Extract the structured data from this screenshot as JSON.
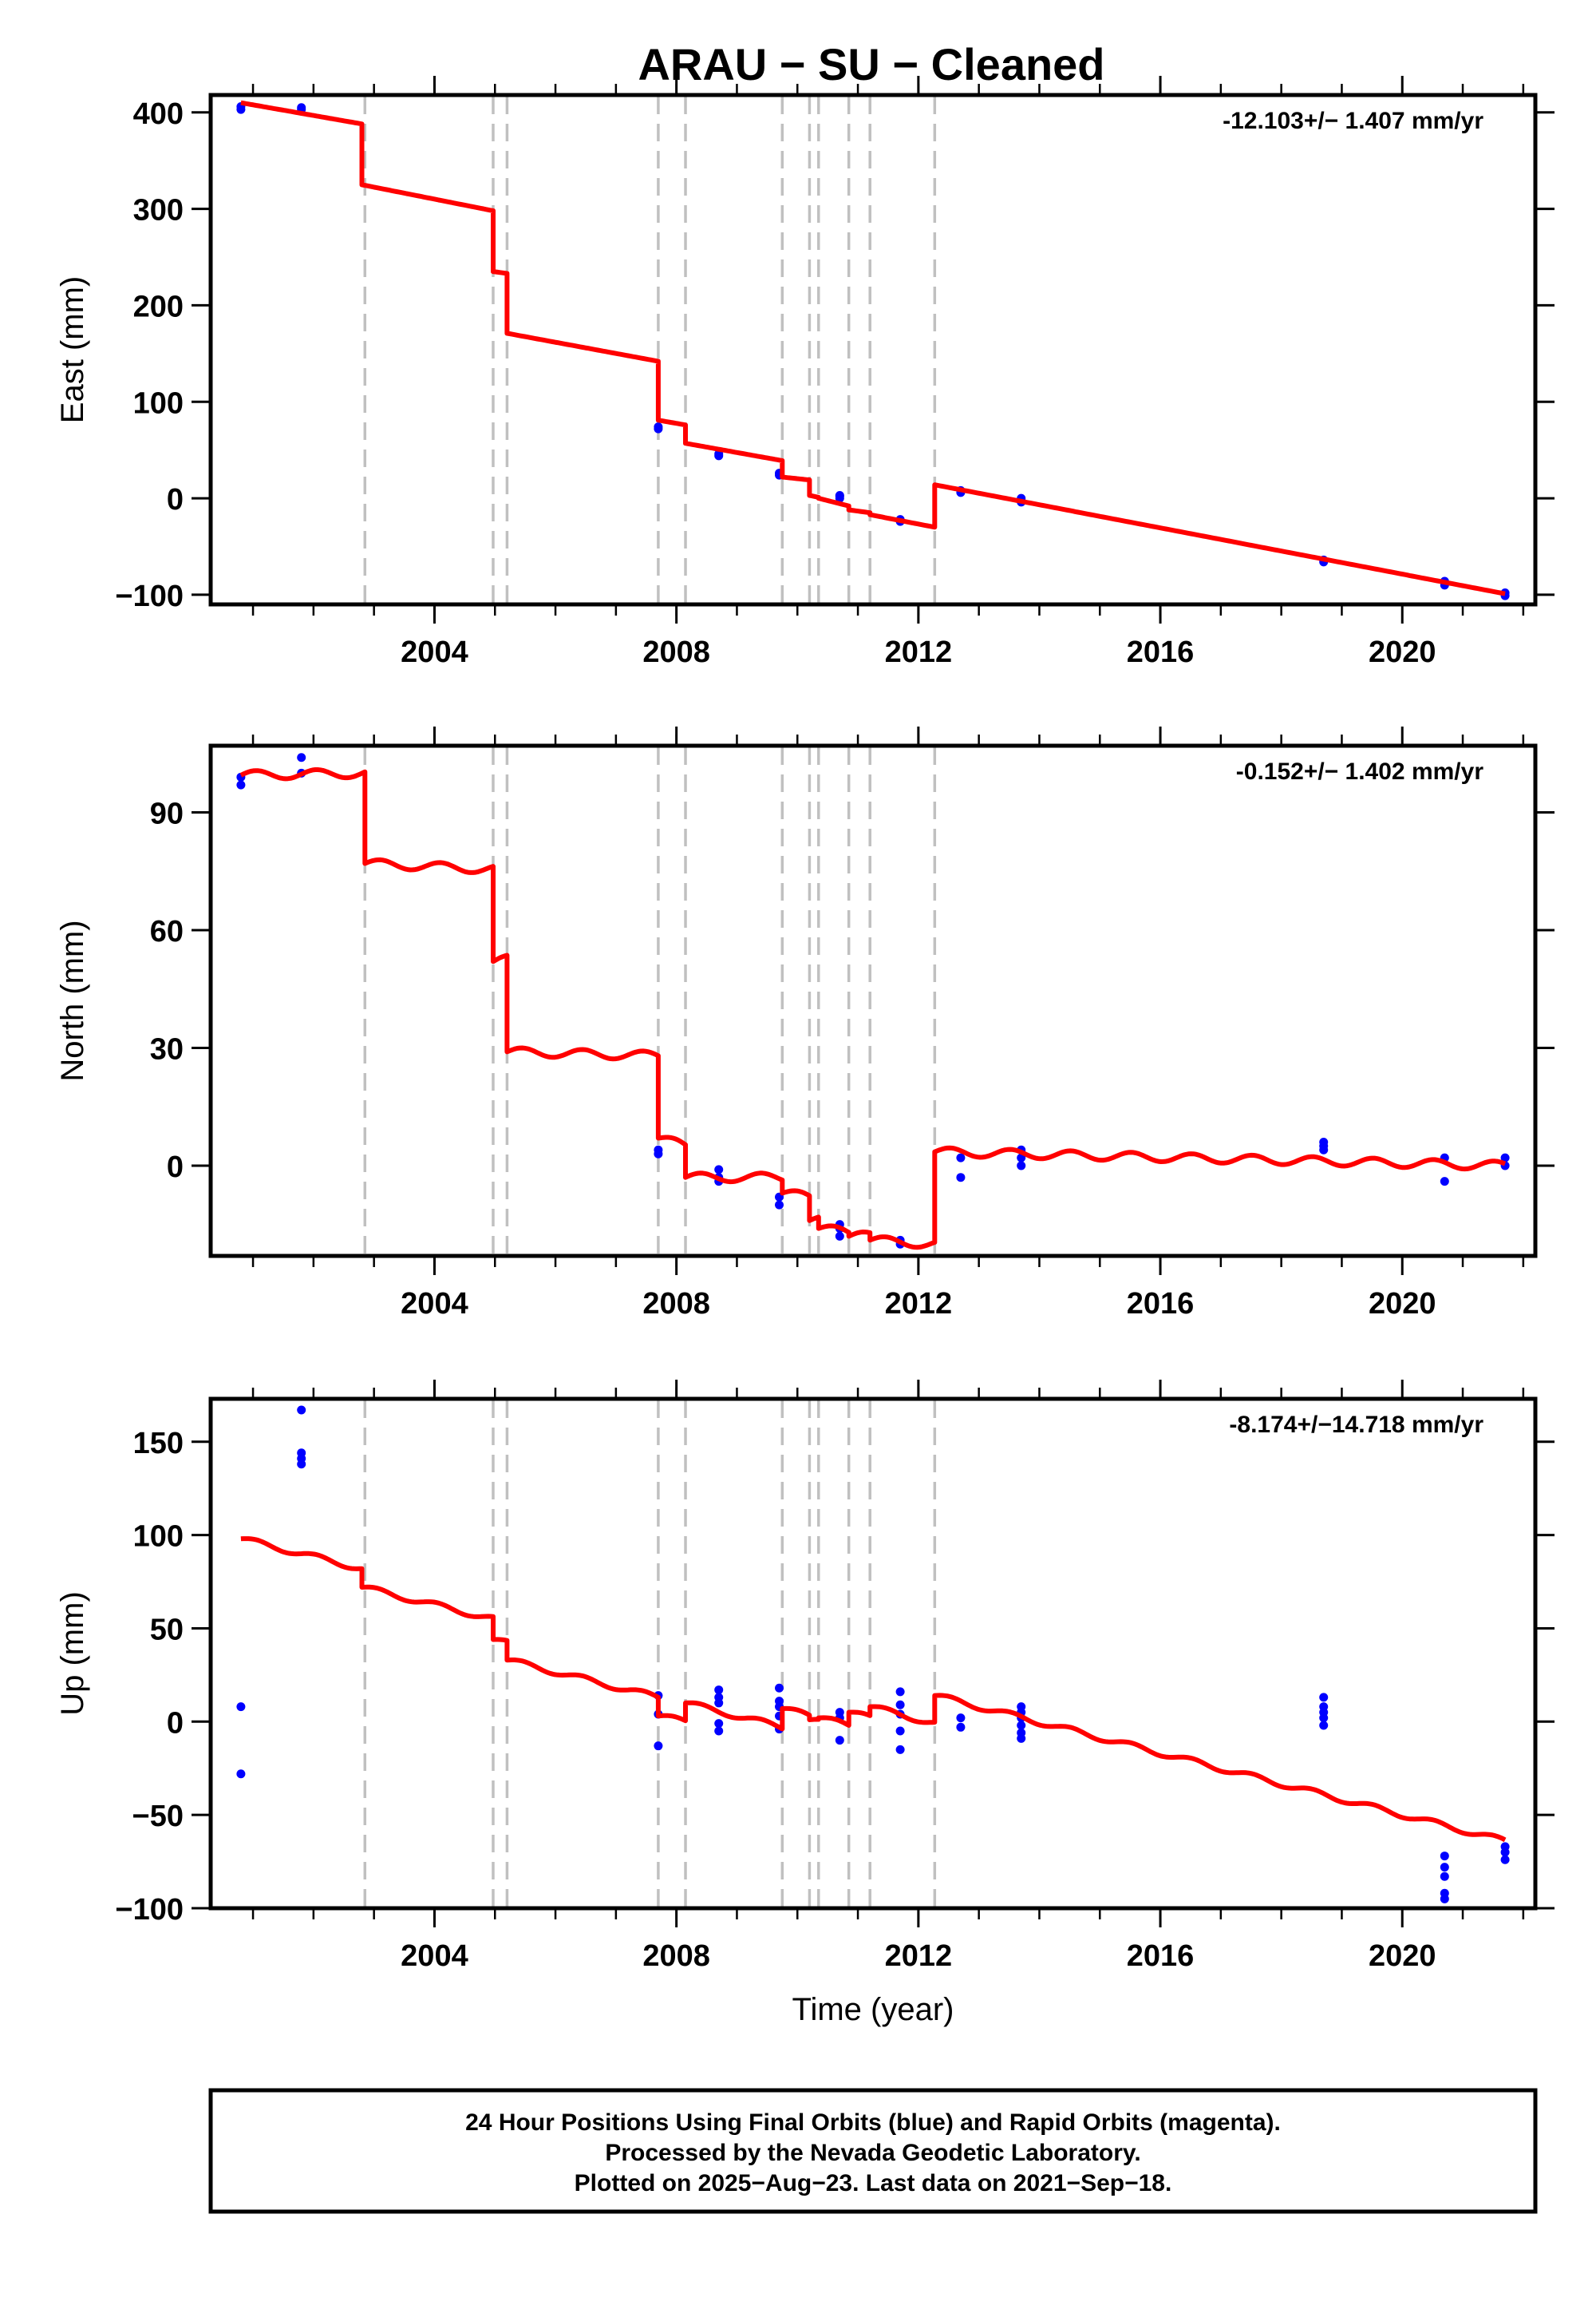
{
  "title": "ARAU  - SU - Cleaned",
  "footer": {
    "lines": [
      "24 Hour Positions Using Final Orbits (blue) and Rapid Orbits (magenta).",
      "Processed by the Nevada Geodetic Laboratory.",
      "Plotted on 2025-Aug-23. Last data on 2021-Sep-18."
    ]
  },
  "colors": {
    "model": "#ff0000",
    "final_orbits": "#0000ff",
    "steps": "#c0c0c0",
    "axes": "#000000"
  },
  "chart_data": [
    {
      "type": "scatter",
      "name": "east",
      "ylabel": "East (mm)",
      "xlabel": "",
      "rate": "-12.103+/- 1.407 mm/yr",
      "xlim": [
        2000.3,
        2022.2
      ],
      "ylim": [
        -110,
        418
      ],
      "xticks": [
        2004,
        2008,
        2012,
        2016,
        2020
      ],
      "yticks": [
        -100,
        0,
        100,
        200,
        300,
        400
      ],
      "points": [
        [
          2000.8,
          403
        ],
        [
          2000.8,
          406
        ],
        [
          2001.8,
          405
        ],
        [
          2001.8,
          403
        ],
        [
          2007.7,
          74
        ],
        [
          2007.7,
          72
        ],
        [
          2008.7,
          46
        ],
        [
          2008.7,
          44
        ],
        [
          2009.7,
          26
        ],
        [
          2009.7,
          24
        ],
        [
          2010.7,
          2
        ],
        [
          2010.7,
          0
        ],
        [
          2010.7,
          3
        ],
        [
          2011.7,
          -22
        ],
        [
          2011.7,
          -24
        ],
        [
          2012.7,
          8
        ],
        [
          2012.7,
          6
        ],
        [
          2013.7,
          -2
        ],
        [
          2013.7,
          0
        ],
        [
          2013.7,
          -4
        ],
        [
          2018.7,
          -64
        ],
        [
          2018.7,
          -66
        ],
        [
          2020.7,
          -86
        ],
        [
          2020.7,
          -90
        ],
        [
          2021.7,
          -98
        ],
        [
          2021.7,
          -101
        ]
      ],
      "model": [
        [
          2000.8,
          410
        ],
        [
          2002.8,
          388
        ],
        [
          2002.8,
          325
        ],
        [
          2004.97,
          298
        ],
        [
          2004.97,
          235
        ],
        [
          2005.2,
          233
        ],
        [
          2005.2,
          171
        ],
        [
          2007.7,
          142
        ],
        [
          2007.7,
          81
        ],
        [
          2008.15,
          76
        ],
        [
          2008.15,
          57
        ],
        [
          2009.75,
          39
        ],
        [
          2009.75,
          22
        ],
        [
          2010.2,
          19
        ],
        [
          2010.2,
          3
        ],
        [
          2010.35,
          1
        ],
        [
          2010.35,
          0
        ],
        [
          2010.85,
          -8
        ],
        [
          2010.85,
          -12
        ],
        [
          2011.2,
          -15
        ],
        [
          2011.2,
          -17
        ],
        [
          2012.27,
          -30
        ],
        [
          2012.27,
          14
        ],
        [
          2021.7,
          -99
        ]
      ]
    },
    {
      "type": "scatter",
      "name": "north",
      "ylabel": "North (mm)",
      "xlabel": "",
      "rate": "-0.152+/- 1.402 mm/yr",
      "xlim": [
        2000.3,
        2022.2
      ],
      "ylim": [
        -23,
        107
      ],
      "xticks": [
        2004,
        2008,
        2012,
        2016,
        2020
      ],
      "yticks": [
        0,
        30,
        60,
        90
      ],
      "points": [
        [
          2000.8,
          97
        ],
        [
          2000.8,
          99
        ],
        [
          2001.8,
          104
        ],
        [
          2001.8,
          100
        ],
        [
          2007.7,
          3
        ],
        [
          2007.7,
          4
        ],
        [
          2008.7,
          -1
        ],
        [
          2008.7,
          -4
        ],
        [
          2008.7,
          -3
        ],
        [
          2009.7,
          -8
        ],
        [
          2009.7,
          -10
        ],
        [
          2010.7,
          -16
        ],
        [
          2010.7,
          -18
        ],
        [
          2010.7,
          -15
        ],
        [
          2011.7,
          -19
        ],
        [
          2011.7,
          -20
        ],
        [
          2012.7,
          2
        ],
        [
          2012.7,
          -3
        ],
        [
          2013.7,
          4
        ],
        [
          2013.7,
          0
        ],
        [
          2013.7,
          2
        ],
        [
          2018.7,
          4
        ],
        [
          2018.7,
          6
        ],
        [
          2018.7,
          5
        ],
        [
          2020.7,
          2
        ],
        [
          2020.7,
          -4
        ],
        [
          2021.7,
          2
        ],
        [
          2021.7,
          0
        ]
      ],
      "model": [
        [
          2000.8,
          99.5
        ],
        [
          2002.85,
          100
        ],
        [
          2002.85,
          77
        ],
        [
          2004.97,
          75.5
        ],
        [
          2004.97,
          52
        ],
        [
          2005.2,
          52.5
        ],
        [
          2005.2,
          29
        ],
        [
          2007.7,
          28
        ],
        [
          2007.7,
          7
        ],
        [
          2008.15,
          5
        ],
        [
          2008.15,
          -3
        ],
        [
          2009.75,
          -3
        ],
        [
          2009.75,
          -7
        ],
        [
          2010.2,
          -8
        ],
        [
          2010.2,
          -14
        ],
        [
          2010.35,
          -14
        ],
        [
          2010.35,
          -16
        ],
        [
          2010.85,
          -17
        ],
        [
          2010.85,
          -18
        ],
        [
          2011.2,
          -18
        ],
        [
          2011.2,
          -19
        ],
        [
          2012.27,
          -20
        ],
        [
          2012.27,
          3.5
        ],
        [
          2021.7,
          0
        ]
      ],
      "annual_amplitude_mm": 1.1
    },
    {
      "type": "scatter",
      "name": "up",
      "ylabel": "Up (mm)",
      "xlabel": "Time (year)",
      "rate": "-8.174+/-14.718 mm/yr",
      "xlim": [
        2000.3,
        2022.2
      ],
      "ylim": [
        -100,
        173
      ],
      "xticks": [
        2004,
        2008,
        2012,
        2016,
        2020
      ],
      "yticks": [
        -100,
        -50,
        0,
        50,
        100,
        150
      ],
      "points": [
        [
          2000.8,
          8
        ],
        [
          2000.8,
          -28
        ],
        [
          2001.8,
          167
        ],
        [
          2001.8,
          144
        ],
        [
          2001.8,
          141
        ],
        [
          2001.8,
          138
        ],
        [
          2007.7,
          14
        ],
        [
          2007.7,
          -13
        ],
        [
          2007.7,
          4
        ],
        [
          2008.7,
          17
        ],
        [
          2008.7,
          13
        ],
        [
          2008.7,
          -1
        ],
        [
          2008.7,
          -5
        ],
        [
          2008.7,
          10
        ],
        [
          2009.7,
          18
        ],
        [
          2009.7,
          11
        ],
        [
          2009.7,
          8
        ],
        [
          2009.7,
          -4
        ],
        [
          2009.7,
          3
        ],
        [
          2010.7,
          5
        ],
        [
          2010.7,
          -10
        ],
        [
          2010.7,
          2
        ],
        [
          2011.7,
          16
        ],
        [
          2011.7,
          9
        ],
        [
          2011.7,
          4
        ],
        [
          2011.7,
          -15
        ],
        [
          2011.7,
          -5
        ],
        [
          2012.7,
          2
        ],
        [
          2012.7,
          -3
        ],
        [
          2013.7,
          8
        ],
        [
          2013.7,
          5
        ],
        [
          2013.7,
          2
        ],
        [
          2013.7,
          -2
        ],
        [
          2013.7,
          -6
        ],
        [
          2013.7,
          -9
        ],
        [
          2018.7,
          13
        ],
        [
          2018.7,
          8
        ],
        [
          2018.7,
          5
        ],
        [
          2018.7,
          2
        ],
        [
          2018.7,
          -2
        ],
        [
          2020.7,
          -72
        ],
        [
          2020.7,
          -78
        ],
        [
          2020.7,
          -83
        ],
        [
          2020.7,
          -92
        ],
        [
          2020.7,
          -95
        ],
        [
          2021.7,
          -67
        ],
        [
          2021.7,
          -70
        ],
        [
          2021.7,
          -74
        ]
      ],
      "model": [
        [
          2000.8,
          98
        ],
        [
          2002.8,
          82
        ],
        [
          2002.8,
          72
        ],
        [
          2004.97,
          55
        ],
        [
          2004.97,
          44
        ],
        [
          2005.2,
          42
        ],
        [
          2005.2,
          33
        ],
        [
          2007.7,
          13
        ],
        [
          2007.7,
          3
        ],
        [
          2008.15,
          0
        ],
        [
          2008.15,
          10
        ],
        [
          2009.75,
          -3
        ],
        [
          2009.75,
          7
        ],
        [
          2010.2,
          3
        ],
        [
          2010.2,
          1
        ],
        [
          2010.35,
          0
        ],
        [
          2010.35,
          2
        ],
        [
          2010.85,
          -2
        ],
        [
          2010.85,
          5
        ],
        [
          2011.2,
          2
        ],
        [
          2011.2,
          8
        ],
        [
          2012.27,
          -1
        ],
        [
          2012.27,
          14
        ],
        [
          2021.7,
          -64
        ]
      ],
      "annual_amplitude_mm": 1.5
    }
  ],
  "step_epochs": [
    2002.85,
    2004.97,
    2005.2,
    2007.7,
    2008.15,
    2009.75,
    2010.2,
    2010.35,
    2010.85,
    2011.2,
    2012.27
  ]
}
